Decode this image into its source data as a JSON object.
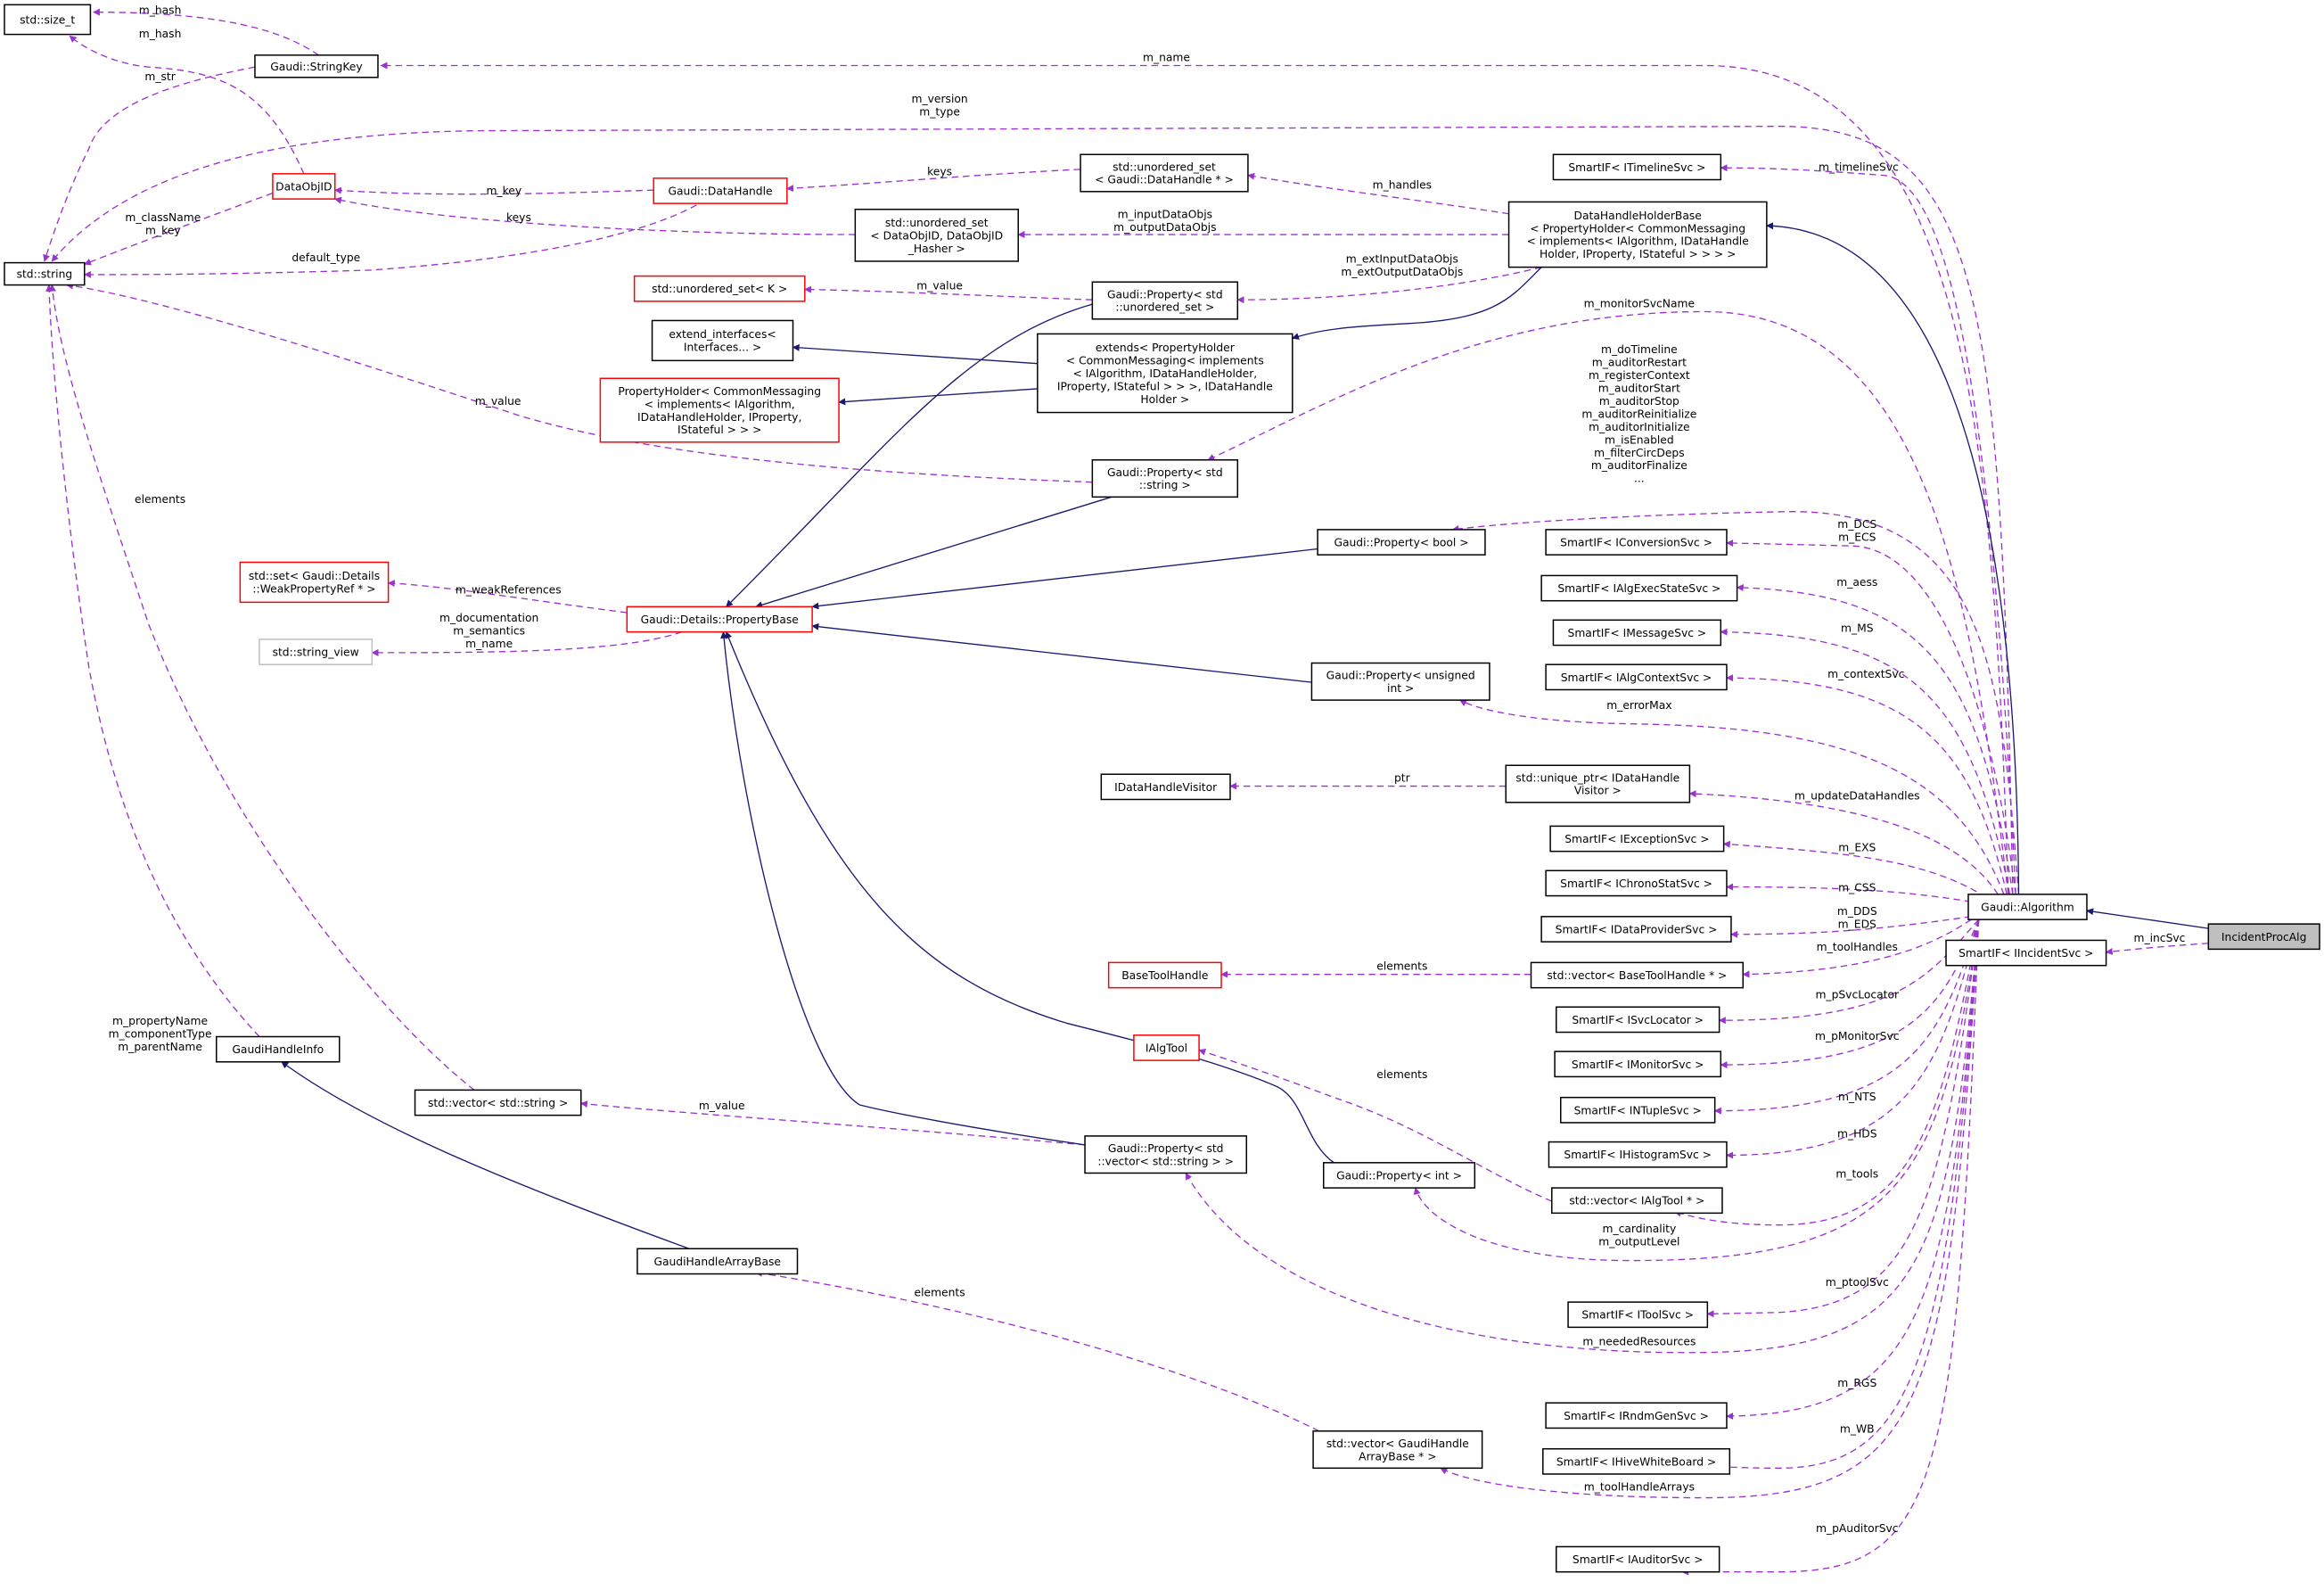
{
  "colors": {
    "usage_edge": "#9a32cd",
    "inheritance_edge": "#191970",
    "undocumented_border": "#ff0000",
    "external_border": "#bfbfbf",
    "current_fill": "#bfbfbf"
  },
  "nodes": {
    "size_t": {
      "lines": [
        "std::size_t"
      ]
    },
    "stringkey": {
      "lines": [
        "Gaudi::StringKey"
      ]
    },
    "string": {
      "lines": [
        "std::string"
      ]
    },
    "dataobjid": {
      "lines": [
        "DataObjID"
      ],
      "style": "red"
    },
    "datahandle": {
      "lines": [
        "Gaudi::DataHandle"
      ],
      "style": "red"
    },
    "uset_dh": {
      "lines": [
        "std::unordered_set",
        "< Gaudi::DataHandle * >"
      ]
    },
    "uset_doid": {
      "lines": [
        "std::unordered_set",
        "< DataObjID, DataObjID",
        "_Hasher >"
      ]
    },
    "dhhb": {
      "lines": [
        "DataHandleHolderBase",
        "< PropertyHolder< CommonMessaging",
        "< implements< IAlgorithm, IDataHandle",
        "Holder, IProperty, IStateful > > > >"
      ]
    },
    "timeline": {
      "lines": [
        "SmartIF< ITimelineSvc >"
      ]
    },
    "uset_k": {
      "lines": [
        "std::unordered_set< K >"
      ],
      "style": "red"
    },
    "prop_uset": {
      "lines": [
        "Gaudi::Property< std",
        "::unordered_set >"
      ]
    },
    "extend_if": {
      "lines": [
        "extend_interfaces<",
        "Interfaces... >"
      ]
    },
    "extends": {
      "lines": [
        "extends< PropertyHolder",
        "< CommonMessaging< implements",
        "< IAlgorithm, IDataHandleHolder,",
        "IProperty, IStateful > > >, IDataHandle",
        "Holder >"
      ]
    },
    "propholder": {
      "lines": [
        "PropertyHolder< CommonMessaging",
        "< implements< IAlgorithm,",
        "IDataHandleHolder, IProperty,",
        "IStateful > > >"
      ],
      "style": "red"
    },
    "prop_string": {
      "lines": [
        "Gaudi::Property< std",
        "::string >"
      ]
    },
    "prop_bool": {
      "lines": [
        "Gaudi::Property< bool >"
      ]
    },
    "conv": {
      "lines": [
        "SmartIF< IConversionSvc >"
      ]
    },
    "execstate": {
      "lines": [
        "SmartIF< IAlgExecStateSvc >"
      ]
    },
    "msg": {
      "lines": [
        "SmartIF< IMessageSvc >"
      ]
    },
    "ctx": {
      "lines": [
        "SmartIF< IAlgContextSvc >"
      ]
    },
    "setweak": {
      "lines": [
        "std::set< Gaudi::Details",
        "::WeakPropertyRef * >"
      ],
      "style": "red"
    },
    "strview": {
      "lines": [
        "std::string_view"
      ],
      "style": "grey"
    },
    "propbase": {
      "lines": [
        "Gaudi::Details::PropertyBase"
      ],
      "style": "red"
    },
    "prop_uint": {
      "lines": [
        "Gaudi::Property< unsigned",
        "int >"
      ]
    },
    "idhv": {
      "lines": [
        "IDataHandleVisitor"
      ]
    },
    "uniqptr": {
      "lines": [
        "std::unique_ptr< IDataHandle",
        "Visitor >"
      ]
    },
    "exc": {
      "lines": [
        "SmartIF< IExceptionSvc >"
      ]
    },
    "chrono": {
      "lines": [
        "SmartIF< IChronoStatSvc >"
      ]
    },
    "dataprov": {
      "lines": [
        "SmartIF< IDataProviderSvc >"
      ]
    },
    "alg": {
      "lines": [
        "Gaudi::Algorithm"
      ]
    },
    "incproc": {
      "lines": [
        "IncidentProcAlg"
      ],
      "style": "current"
    },
    "incsvc": {
      "lines": [
        "SmartIF< IIncidentSvc >"
      ]
    },
    "basetool": {
      "lines": [
        "BaseToolHandle"
      ],
      "style": "red"
    },
    "vec_bth": {
      "lines": [
        "std::vector< BaseToolHandle * >"
      ]
    },
    "svcloc": {
      "lines": [
        "SmartIF< ISvcLocator >"
      ]
    },
    "monitor": {
      "lines": [
        "SmartIF< IMonitorSvc >"
      ]
    },
    "ialgtool": {
      "lines": [
        "IAlgTool"
      ],
      "style": "red"
    },
    "gaudihandleinfo": {
      "lines": [
        "GaudiHandleInfo"
      ]
    },
    "vec_str": {
      "lines": [
        "std::vector< std::string >"
      ]
    },
    "ntuple": {
      "lines": [
        "SmartIF< INTupleSvc >"
      ]
    },
    "prop_vecstr": {
      "lines": [
        "Gaudi::Property< std",
        "::vector< std::string > >"
      ]
    },
    "prop_int": {
      "lines": [
        "Gaudi::Property< int >"
      ]
    },
    "hist": {
      "lines": [
        "SmartIF< IHistogramSvc >"
      ]
    },
    "vec_ialgtool": {
      "lines": [
        "std::vector< IAlgTool * >"
      ]
    },
    "gaudihab": {
      "lines": [
        "GaudiHandleArrayBase"
      ]
    },
    "tool": {
      "lines": [
        "SmartIF< IToolSvc >"
      ]
    },
    "rndm": {
      "lines": [
        "SmartIF< IRndmGenSvc >"
      ]
    },
    "hive": {
      "lines": [
        "SmartIF< IHiveWhiteBoard >"
      ]
    },
    "vec_ghab": {
      "lines": [
        "std::vector< GaudiHandle",
        "ArrayBase * >"
      ]
    },
    "auditor": {
      "lines": [
        "SmartIF< IAuditorSvc >"
      ]
    }
  },
  "edges": [
    {
      "from": "stringkey",
      "to": "size_t",
      "kind": "usage",
      "label": [
        "m_hash"
      ]
    },
    {
      "from": "dataobjid",
      "to": "size_t",
      "kind": "usage",
      "label": [
        "m_hash"
      ]
    },
    {
      "from": "stringkey",
      "to": "string",
      "kind": "usage",
      "label": [
        "m_str"
      ]
    },
    {
      "from": "alg",
      "to": "stringkey",
      "kind": "usage",
      "label": [
        "m_name"
      ]
    },
    {
      "from": "alg",
      "to": "string",
      "kind": "usage",
      "label": [
        "m_version",
        "m_type"
      ]
    },
    {
      "from": "dataobjid",
      "to": "string",
      "kind": "usage",
      "label": [
        "m_className",
        "m_key"
      ]
    },
    {
      "from": "datahandle",
      "to": "dataobjid",
      "kind": "usage",
      "label": [
        "m_key"
      ]
    },
    {
      "from": "uset_doid",
      "to": "dataobjid",
      "kind": "usage",
      "label": [
        "keys"
      ]
    },
    {
      "from": "datahandle",
      "to": "string",
      "kind": "usage",
      "label": [
        "default_type"
      ]
    },
    {
      "from": "uset_dh",
      "to": "datahandle",
      "kind": "usage",
      "label": [
        "keys"
      ]
    },
    {
      "from": "dhhb",
      "to": "uset_dh",
      "kind": "usage",
      "label": [
        "m_handles"
      ]
    },
    {
      "from": "dhhb",
      "to": "uset_doid",
      "kind": "usage",
      "label": [
        "m_inputDataObjs",
        "m_outputDataObjs"
      ]
    },
    {
      "from": "dhhb",
      "to": "prop_uset",
      "kind": "usage",
      "label": [
        "m_extInputDataObjs",
        "m_extOutputDataObjs"
      ]
    },
    {
      "from": "prop_uset",
      "to": "uset_k",
      "kind": "usage",
      "label": [
        "m_value"
      ]
    },
    {
      "from": "prop_string",
      "to": "string",
      "kind": "usage",
      "label": [
        "m_value"
      ]
    },
    {
      "from": "alg",
      "to": "prop_string",
      "kind": "usage",
      "label": [
        "m_monitorSvcName"
      ]
    },
    {
      "from": "alg",
      "to": "timeline",
      "kind": "usage",
      "label": [
        "m_timelineSvc"
      ]
    },
    {
      "from": "alg",
      "to": "prop_bool",
      "kind": "usage",
      "label": [
        "m_doTimeline",
        "m_auditorRestart",
        "m_registerContext",
        "m_auditorStart",
        "m_auditorStop",
        "m_auditorReinitialize",
        "m_auditorInitialize",
        "m_isEnabled",
        "m_filterCircDeps",
        "m_auditorFinalize",
        "..."
      ]
    },
    {
      "from": "alg",
      "to": "conv",
      "kind": "usage",
      "label": [
        "m_DCS",
        "m_ECS"
      ]
    },
    {
      "from": "alg",
      "to": "execstate",
      "kind": "usage",
      "label": [
        "m_aess"
      ]
    },
    {
      "from": "alg",
      "to": "msg",
      "kind": "usage",
      "label": [
        "m_MS"
      ]
    },
    {
      "from": "alg",
      "to": "ctx",
      "kind": "usage",
      "label": [
        "m_contextSvc"
      ]
    },
    {
      "from": "alg",
      "to": "prop_uint",
      "kind": "usage",
      "label": [
        "m_errorMax"
      ]
    },
    {
      "from": "uniqptr",
      "to": "idhv",
      "kind": "usage",
      "label": [
        "ptr"
      ]
    },
    {
      "from": "alg",
      "to": "uniqptr",
      "kind": "usage",
      "label": [
        "m_updateDataHandles"
      ]
    },
    {
      "from": "alg",
      "to": "exc",
      "kind": "usage",
      "label": [
        "m_EXS"
      ]
    },
    {
      "from": "alg",
      "to": "chrono",
      "kind": "usage",
      "label": [
        "m_CSS"
      ]
    },
    {
      "from": "alg",
      "to": "dataprov",
      "kind": "usage",
      "label": [
        "m_DDS",
        "m_EDS"
      ]
    },
    {
      "from": "alg",
      "to": "vec_bth",
      "kind": "usage",
      "label": [
        "m_toolHandles"
      ]
    },
    {
      "from": "vec_bth",
      "to": "basetool",
      "kind": "usage",
      "label": [
        "elements"
      ]
    },
    {
      "from": "alg",
      "to": "svcloc",
      "kind": "usage",
      "label": [
        "m_pSvcLocator"
      ]
    },
    {
      "from": "alg",
      "to": "monitor",
      "kind": "usage",
      "label": [
        "m_pMonitorSvc"
      ]
    },
    {
      "from": "alg",
      "to": "ntuple",
      "kind": "usage",
      "label": [
        "m_NTS"
      ]
    },
    {
      "from": "alg",
      "to": "hist",
      "kind": "usage",
      "label": [
        "m_HDS"
      ]
    },
    {
      "from": "alg",
      "to": "vec_ialgtool",
      "kind": "usage",
      "label": [
        "m_tools"
      ]
    },
    {
      "from": "vec_ialgtool",
      "to": "ialgtool",
      "kind": "usage",
      "label": [
        "elements"
      ]
    },
    {
      "from": "alg",
      "to": "prop_int",
      "kind": "usage",
      "label": [
        "m_cardinality",
        "m_outputLevel"
      ]
    },
    {
      "from": "alg",
      "to": "tool",
      "kind": "usage",
      "label": [
        "m_ptoolSvc"
      ]
    },
    {
      "from": "alg",
      "to": "prop_vecstr",
      "kind": "usage",
      "label": [
        "m_neededResources"
      ]
    },
    {
      "from": "alg",
      "to": "rndm",
      "kind": "usage",
      "label": [
        "m_RGS"
      ]
    },
    {
      "from": "alg",
      "to": "hive",
      "kind": "usage",
      "label": [
        "m_WB"
      ]
    },
    {
      "from": "alg",
      "to": "vec_ghab",
      "kind": "usage",
      "label": [
        "m_toolHandleArrays"
      ]
    },
    {
      "from": "alg",
      "to": "auditor",
      "kind": "usage",
      "label": [
        "m_pAuditorSvc"
      ]
    },
    {
      "from": "incproc",
      "to": "incsvc",
      "kind": "usage",
      "label": [
        "m_incSvc"
      ]
    },
    {
      "from": "propbase",
      "to": "setweak",
      "kind": "usage",
      "label": [
        "m_weakReferences"
      ]
    },
    {
      "from": "propbase",
      "to": "strview",
      "kind": "usage",
      "label": [
        "m_documentation",
        "m_semantics",
        "m_name"
      ]
    },
    {
      "from": "prop_vecstr",
      "to": "vec_str",
      "kind": "usage",
      "label": [
        "m_value"
      ]
    },
    {
      "from": "vec_str",
      "to": "string",
      "kind": "usage",
      "label": [
        "elements"
      ]
    },
    {
      "from": "gaudihandleinfo",
      "to": "string",
      "kind": "usage",
      "label": [
        "m_propertyName",
        "m_componentType",
        "m_parentName"
      ]
    },
    {
      "from": "vec_ghab",
      "to": "gaudihab",
      "kind": "usage",
      "label": [
        "elements"
      ]
    },
    {
      "from": "incproc",
      "to": "alg",
      "kind": "inheritance",
      "label": []
    },
    {
      "from": "alg",
      "to": "dhhb",
      "kind": "inheritance",
      "label": []
    },
    {
      "from": "dhhb",
      "to": "extends",
      "kind": "inheritance",
      "label": []
    },
    {
      "from": "extends",
      "to": "extend_if",
      "kind": "inheritance",
      "label": []
    },
    {
      "from": "extends",
      "to": "propholder",
      "kind": "inheritance",
      "label": []
    },
    {
      "from": "prop_uset",
      "to": "propbase",
      "kind": "inheritance",
      "label": []
    },
    {
      "from": "prop_string",
      "to": "propbase",
      "kind": "inheritance",
      "label": []
    },
    {
      "from": "prop_bool",
      "to": "propbase",
      "kind": "inheritance",
      "label": []
    },
    {
      "from": "prop_uint",
      "to": "propbase",
      "kind": "inheritance",
      "label": []
    },
    {
      "from": "prop_vecstr",
      "to": "propbase",
      "kind": "inheritance",
      "label": []
    },
    {
      "from": "prop_int",
      "to": "propbase",
      "kind": "inheritance",
      "label": []
    },
    {
      "from": "gaudihab",
      "to": "gaudihandleinfo",
      "kind": "inheritance",
      "label": []
    }
  ]
}
